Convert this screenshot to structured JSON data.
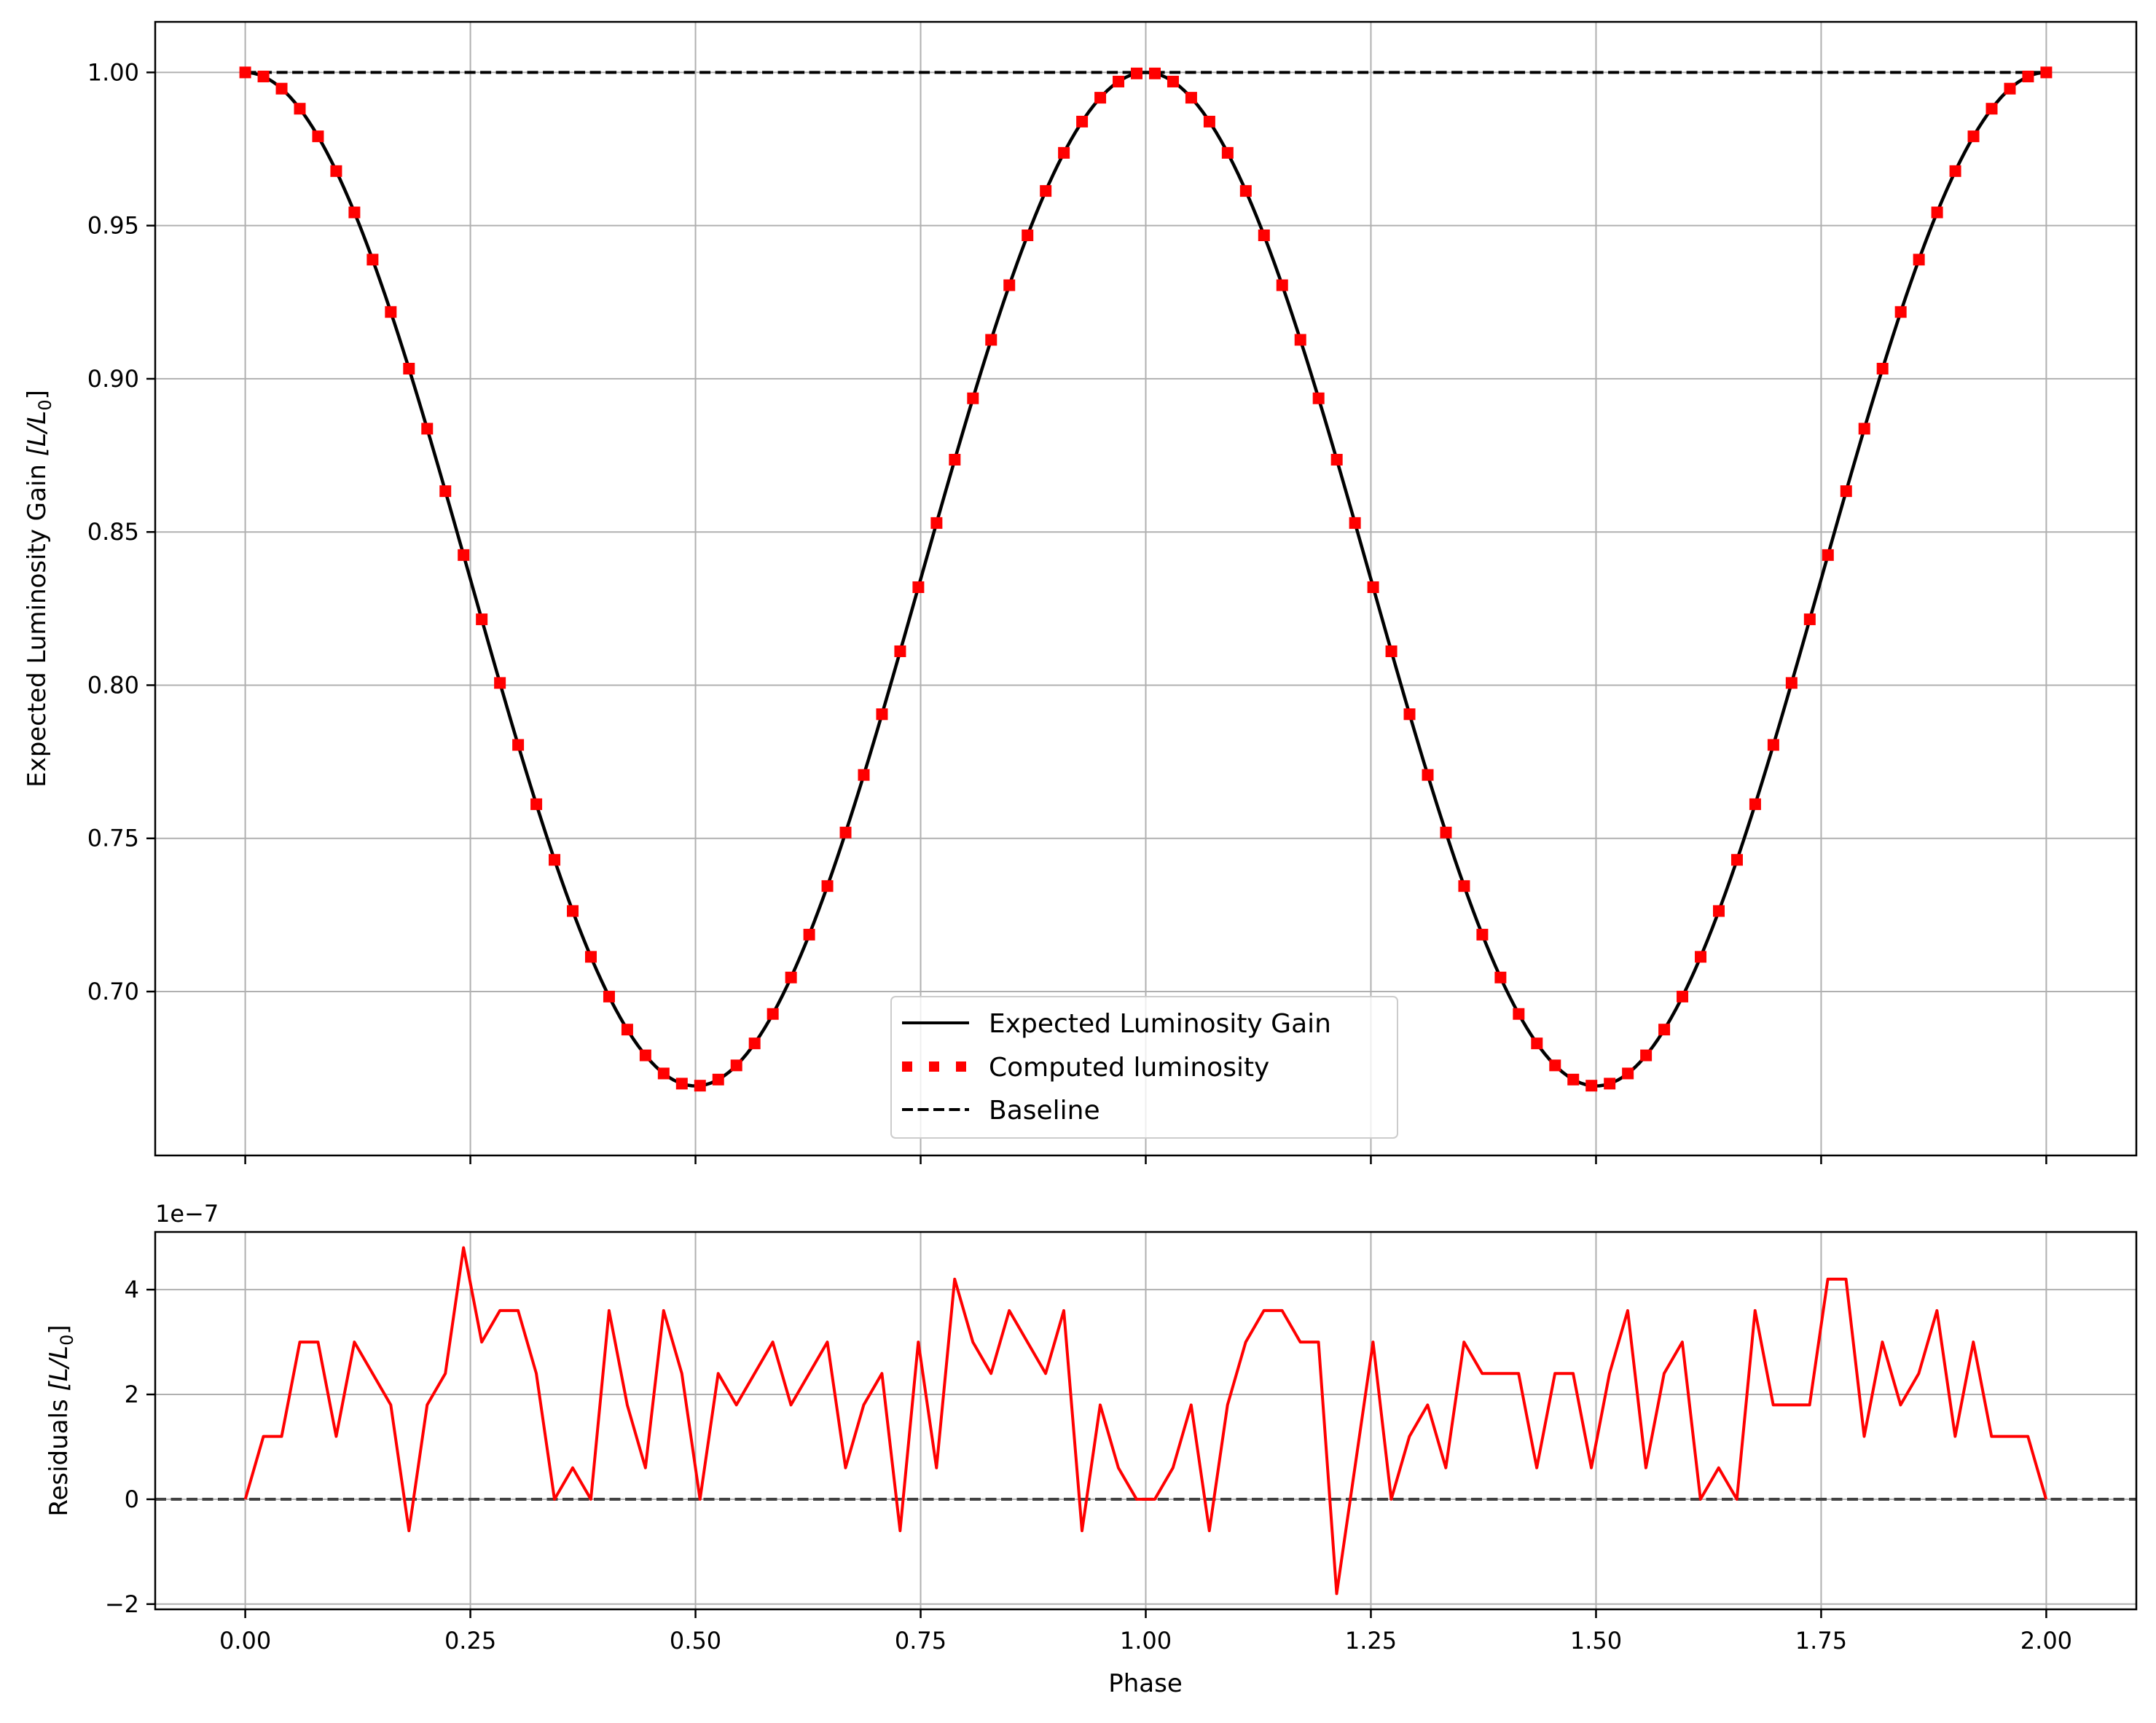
{
  "chart_data": [
    {
      "type": "line",
      "panel": "top",
      "ylabel_text": "Expected Luminosity Gain ",
      "ylabel_math": "[L/L",
      "ylabel_sub": "0",
      "ylabel_close": "]",
      "xlim": [
        -0.1,
        2.1
      ],
      "ylim": [
        0.6465,
        1.0165
      ],
      "yticks": [
        0.7,
        0.75,
        0.8,
        0.85,
        0.9,
        0.95,
        1.0
      ],
      "ytick_labels": [
        "0.70",
        "0.75",
        "0.80",
        "0.85",
        "0.90",
        "0.95",
        "1.00"
      ],
      "xticks": [
        0.0,
        0.25,
        0.5,
        0.75,
        1.0,
        1.25,
        1.5,
        1.75,
        2.0
      ],
      "grid": true,
      "legend_position": "bottom-center",
      "series": [
        {
          "name": "Expected Luminosity Gain",
          "style": "solid",
          "color": "#000000",
          "model": {
            "baseline": 1.0,
            "depth": 0.3308,
            "period": 1.0,
            "x_start": 0.0,
            "x_end": 2.0,
            "samples": 400
          }
        },
        {
          "name": "Computed luminosity",
          "style": "dotted",
          "color": "#ff0000",
          "model": {
            "baseline": 1.0,
            "depth": 0.3308,
            "period": 1.0,
            "x_start": 0.0,
            "x_end": 2.0,
            "samples": 100
          }
        },
        {
          "name": "Baseline",
          "style": "dashed",
          "color": "#000000",
          "x": [
            0.0,
            2.0
          ],
          "y": [
            1.0,
            1.0
          ]
        }
      ]
    },
    {
      "type": "line",
      "panel": "bottom",
      "ylabel_text": "Residuals ",
      "ylabel_math": "[L/L",
      "ylabel_sub": "0",
      "ylabel_close": "]",
      "xlabel": "Phase",
      "offset_label": "1e−7",
      "xlim": [
        -0.1,
        2.1
      ],
      "ylim": [
        -2.1,
        5.1
      ],
      "yticks": [
        -2,
        0,
        2,
        4
      ],
      "ytick_labels": [
        "−2",
        "0",
        "2",
        "4"
      ],
      "xticks": [
        0.0,
        0.25,
        0.5,
        0.75,
        1.0,
        1.25,
        1.5,
        1.75,
        2.0
      ],
      "xtick_labels": [
        "0.00",
        "0.25",
        "0.50",
        "0.75",
        "1.00",
        "1.25",
        "1.50",
        "1.75",
        "2.00"
      ],
      "grid": true,
      "series": [
        {
          "name": "residuals",
          "style": "solid",
          "color": "#ff0000",
          "x_start": 0.0,
          "x_step": 0.0202,
          "y": [
            0.0,
            1.2,
            1.2,
            3.0,
            3.0,
            1.2,
            3.0,
            2.4,
            1.8,
            -0.6,
            1.8,
            2.4,
            4.8,
            3.0,
            3.6,
            3.6,
            2.4,
            0.0,
            0.6,
            0.0,
            3.6,
            1.8,
            0.6,
            3.6,
            2.4,
            0.0,
            2.4,
            1.8,
            2.4,
            3.0,
            1.8,
            2.4,
            3.0,
            0.6,
            1.8,
            2.4,
            -0.6,
            3.0,
            0.6,
            4.2,
            3.0,
            2.4,
            3.6,
            3.0,
            2.4,
            3.6,
            -0.6,
            1.8,
            0.6,
            0.0,
            0.0,
            0.6,
            1.8,
            -0.6,
            1.8,
            3.0,
            3.6,
            3.6,
            3.0,
            3.0,
            -1.8,
            0.6,
            3.0,
            0.0,
            1.2,
            1.8,
            0.6,
            3.0,
            2.4,
            2.4,
            2.4,
            0.6,
            2.4,
            2.4,
            0.6,
            2.4,
            3.6,
            0.6,
            2.4,
            3.0,
            0.0,
            0.6,
            0.0,
            3.6,
            1.8,
            1.8,
            1.8,
            4.2,
            4.2,
            1.2,
            3.0,
            1.8,
            2.4,
            3.6,
            1.2,
            3.0,
            1.2,
            1.2,
            1.2,
            0.0
          ]
        },
        {
          "name": "zero-line",
          "style": "dashed",
          "color": "#404040",
          "x": [
            -0.1,
            2.1
          ],
          "y": [
            0.0,
            0.0
          ]
        }
      ]
    }
  ]
}
